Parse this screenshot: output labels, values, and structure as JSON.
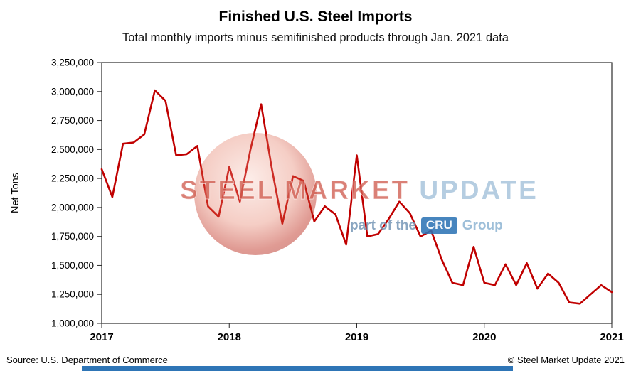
{
  "header": {
    "title": "Finished U.S. Steel Imports",
    "subtitle": "Total monthly imports minus semifinished products through Jan. 2021 data"
  },
  "footer": {
    "source": "Source: U.S. Department of Commerce",
    "copyright": "© Steel Market Update 2021"
  },
  "watermark": {
    "brand_primary": "STEEL MARKET",
    "brand_secondary": "UPDATE",
    "tagline_prefix": "part of the",
    "tagline_logo": "CRU",
    "tagline_suffix": "Group"
  },
  "colors": {
    "line": "#C00000",
    "banner": "#2E75B6",
    "cru_box": "#2E74B5"
  },
  "chart_data": {
    "type": "line",
    "title": "Finished U.S. Steel Imports",
    "subtitle": "Total monthly imports minus semifinished products through Jan. 2021 data",
    "xlabel": "",
    "ylabel": "Net Tons",
    "ylim": [
      1000000,
      3250000
    ],
    "ytick_step": 250000,
    "grid": false,
    "legend": "none",
    "line_color": "#C00000",
    "x_unit": "month",
    "x_start": "2017-01",
    "x_end": "2021-01",
    "xticks": [
      {
        "index": 0,
        "label": "2017"
      },
      {
        "index": 12,
        "label": "2018"
      },
      {
        "index": 24,
        "label": "2019"
      },
      {
        "index": 36,
        "label": "2020"
      },
      {
        "index": 48,
        "label": "2021"
      }
    ],
    "values": [
      2330000,
      2090000,
      2550000,
      2560000,
      2630000,
      3010000,
      2920000,
      2450000,
      2460000,
      2530000,
      2010000,
      1920000,
      2350000,
      2050000,
      2500000,
      2890000,
      2340000,
      1860000,
      2270000,
      2230000,
      1880000,
      2010000,
      1940000,
      1680000,
      2450000,
      1750000,
      1770000,
      1900000,
      2050000,
      1950000,
      1750000,
      1800000,
      1550000,
      1350000,
      1330000,
      1660000,
      1350000,
      1330000,
      1510000,
      1330000,
      1520000,
      1300000,
      1430000,
      1350000,
      1180000,
      1170000,
      1250000,
      1330000,
      1270000
    ]
  }
}
